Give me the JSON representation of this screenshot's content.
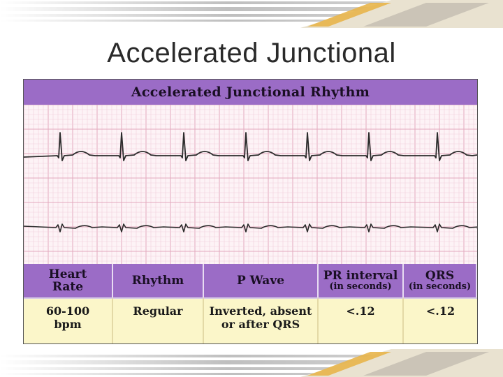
{
  "slide": {
    "title": "Accelerated Junctional"
  },
  "figure": {
    "title": "Accelerated Junctional Rhythm",
    "colors": {
      "header": "#9b6cc6",
      "grid_minor": "#f1cfdb",
      "grid_major": "#e2a9be",
      "trace": "#2b2b2b",
      "value_cell": "#fbf6c9"
    }
  },
  "table": {
    "headers": [
      {
        "line1": "Heart",
        "line2": "Rate",
        "sub": ""
      },
      {
        "line1": "Rhythm",
        "line2": "",
        "sub": ""
      },
      {
        "line1": "P Wave",
        "line2": "",
        "sub": ""
      },
      {
        "line1": "PR interval",
        "line2": "",
        "sub": "(in seconds)"
      },
      {
        "line1": "QRS",
        "line2": "",
        "sub": "(in seconds)"
      }
    ],
    "values": [
      {
        "line1": "60-100",
        "line2": "bpm"
      },
      {
        "line1": "Regular",
        "line2": ""
      },
      {
        "line1": "Inverted, absent",
        "line2": "or after QRS"
      },
      {
        "line1": "<.12",
        "line2": ""
      },
      {
        "line1": "<.12",
        "line2": ""
      }
    ]
  }
}
